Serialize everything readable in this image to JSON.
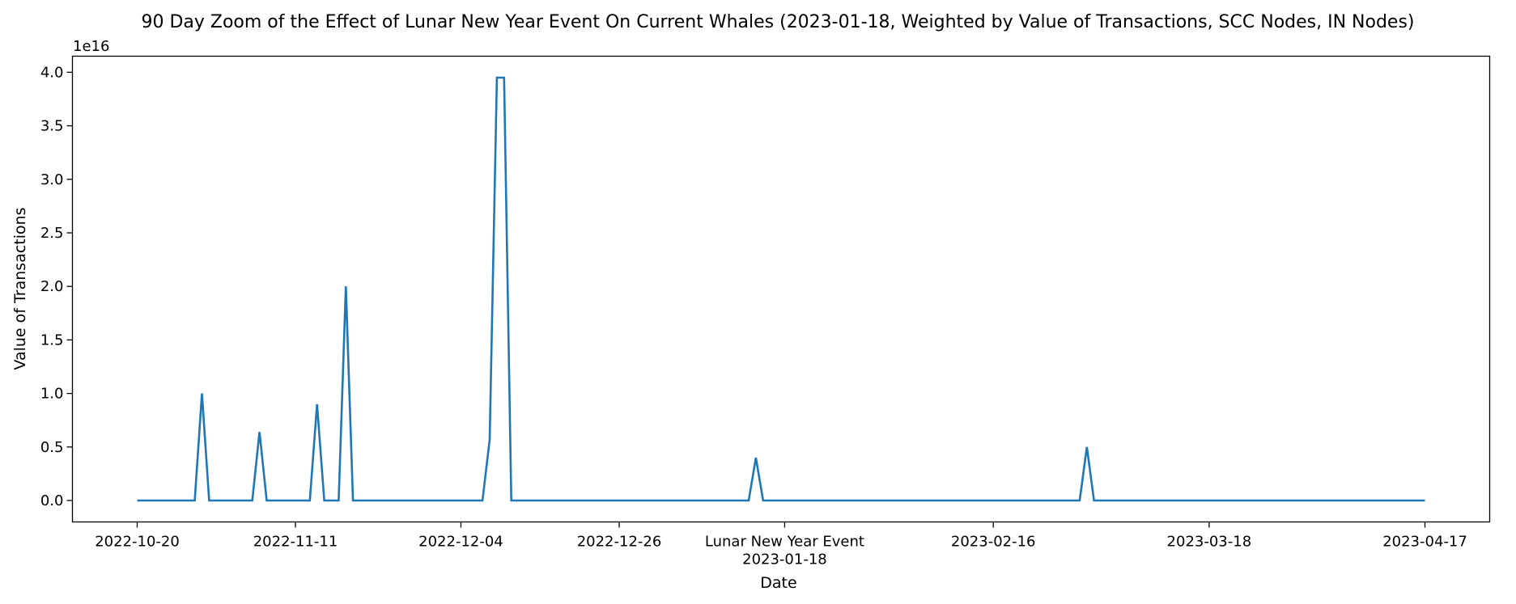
{
  "chart_data": {
    "type": "line",
    "title": "90 Day Zoom of the Effect of Lunar New Year Event On Current Whales (2023-01-18, Weighted by Value of Transactions, SCC Nodes, IN Nodes)",
    "xlabel": "Date",
    "ylabel": "Value of Transactions",
    "y_offset_text": "1e16",
    "y_multiplier": 1e+16,
    "xlim": [
      "2022-10-11",
      "2023-04-26"
    ],
    "ylim": [
      -0.2,
      4.15
    ],
    "yticks": [
      0.0,
      0.5,
      1.0,
      1.5,
      2.0,
      2.5,
      3.0,
      3.5,
      4.0
    ],
    "ytick_labels": [
      "0.0",
      "0.5",
      "1.0",
      "1.5",
      "2.0",
      "2.5",
      "3.0",
      "3.5",
      "4.0"
    ],
    "xticks": [
      {
        "date": "2022-10-20",
        "label": "2022-10-20"
      },
      {
        "date": "2022-11-11",
        "label": "2022-11-11"
      },
      {
        "date": "2022-12-04",
        "label": "2022-12-04"
      },
      {
        "date": "2022-12-26",
        "label": "2022-12-26"
      },
      {
        "date": "2023-01-18",
        "label": "Lunar New Year Event",
        "label2": "2023-01-18"
      },
      {
        "date": "2023-02-16",
        "label": "2023-02-16"
      },
      {
        "date": "2023-03-18",
        "label": "2023-03-18"
      },
      {
        "date": "2023-04-17",
        "label": "2023-04-17"
      }
    ],
    "grid": false,
    "series": [
      {
        "color": "#1f77b4",
        "points": [
          [
            "2022-10-20",
            0.0
          ],
          [
            "2022-10-28",
            0.0
          ],
          [
            "2022-10-29",
            1.0
          ],
          [
            "2022-10-30",
            0.0
          ],
          [
            "2022-11-05",
            0.0
          ],
          [
            "2022-11-06",
            0.64
          ],
          [
            "2022-11-07",
            0.0
          ],
          [
            "2022-11-13",
            0.0
          ],
          [
            "2022-11-14",
            0.9
          ],
          [
            "2022-11-15",
            0.0
          ],
          [
            "2022-11-17",
            0.0
          ],
          [
            "2022-11-18",
            2.0
          ],
          [
            "2022-11-19",
            0.0
          ],
          [
            "2022-12-07",
            0.0
          ],
          [
            "2022-12-08",
            0.57
          ],
          [
            "2022-12-09",
            3.95
          ],
          [
            "2022-12-10",
            3.95
          ],
          [
            "2022-12-11",
            0.0
          ],
          [
            "2023-01-13",
            0.0
          ],
          [
            "2023-01-14",
            0.4
          ],
          [
            "2023-01-15",
            0.0
          ],
          [
            "2023-02-28",
            0.0
          ],
          [
            "2023-03-01",
            0.5
          ],
          [
            "2023-03-02",
            0.0
          ],
          [
            "2023-04-17",
            0.0
          ]
        ]
      }
    ]
  }
}
